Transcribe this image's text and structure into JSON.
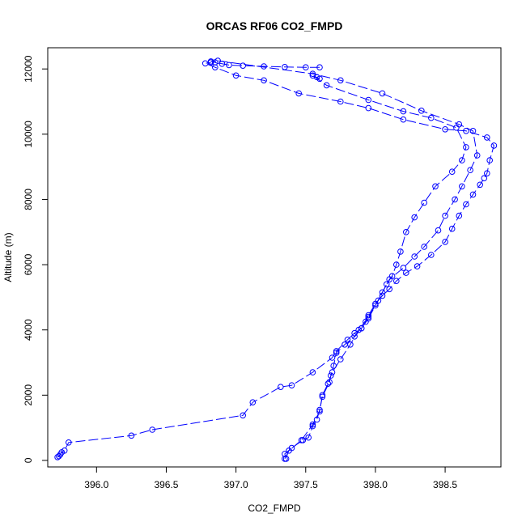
{
  "chart_data": {
    "type": "line",
    "title": "ORCAS RF06 CO2_FMPD",
    "xlabel": "CO2_FMPD",
    "ylabel": "Altitude (m)",
    "xlim": [
      395.65,
      398.9
    ],
    "ylim": [
      -200,
      12650
    ],
    "xticks": [
      396.0,
      396.5,
      397.0,
      397.5,
      398.0,
      398.5
    ],
    "xtick_labels": [
      "396.0",
      "396.5",
      "397.0",
      "397.5",
      "398.0",
      "398.5"
    ],
    "yticks": [
      0,
      2000,
      4000,
      6000,
      8000,
      10000,
      12000
    ],
    "ytick_labels": [
      "0",
      "2000",
      "4000",
      "6000",
      "8000",
      "10000",
      "12000"
    ],
    "grid": false,
    "legend": "none",
    "marker": "open-circle",
    "line_style": "dashed",
    "color": "#0000ff",
    "series": [
      {
        "values": [
          [
            395.72,
            100
          ],
          [
            395.73,
            130
          ],
          [
            395.74,
            180
          ],
          [
            395.75,
            250
          ],
          [
            395.77,
            300
          ],
          [
            395.8,
            550
          ],
          [
            396.25,
            760
          ],
          [
            396.4,
            940
          ],
          [
            397.05,
            1380
          ],
          [
            397.12,
            1780
          ],
          [
            397.32,
            2250
          ],
          [
            397.4,
            2300
          ],
          [
            397.55,
            2700
          ],
          [
            397.69,
            3150
          ],
          [
            397.72,
            3350
          ],
          [
            397.8,
            3700
          ],
          [
            397.85,
            3900
          ],
          [
            397.9,
            4050
          ],
          [
            397.93,
            4250
          ],
          [
            397.95,
            4450
          ],
          [
            398.0,
            4800
          ],
          [
            398.05,
            5050
          ],
          [
            398.1,
            5250
          ],
          [
            398.15,
            5500
          ],
          [
            398.22,
            5750
          ],
          [
            398.3,
            5950
          ],
          [
            398.4,
            6300
          ],
          [
            398.5,
            6700
          ],
          [
            398.55,
            7100
          ],
          [
            398.6,
            7500
          ],
          [
            398.65,
            7850
          ],
          [
            398.7,
            8150
          ],
          [
            398.75,
            8450
          ],
          [
            398.78,
            8650
          ],
          [
            398.8,
            8800
          ],
          [
            398.82,
            9200
          ],
          [
            398.85,
            9650
          ],
          [
            398.8,
            9900
          ],
          [
            398.65,
            10100
          ],
          [
            398.5,
            10150
          ],
          [
            398.2,
            10450
          ],
          [
            397.95,
            10800
          ],
          [
            397.75,
            11000
          ],
          [
            397.45,
            11250
          ],
          [
            397.2,
            11650
          ],
          [
            397.0,
            11800
          ],
          [
            396.85,
            12050
          ],
          [
            396.78,
            12170
          ],
          [
            396.82,
            12200
          ]
        ]
      },
      {
        "values": [
          [
            397.6,
            12050
          ],
          [
            397.5,
            12050
          ],
          [
            397.35,
            12060
          ],
          [
            397.2,
            12080
          ],
          [
            397.05,
            12100
          ],
          [
            396.95,
            12120
          ],
          [
            396.9,
            12160
          ],
          [
            396.85,
            12200
          ],
          [
            396.82,
            12230
          ],
          [
            396.87,
            12250
          ],
          [
            397.55,
            11850
          ],
          [
            397.75,
            11650
          ],
          [
            398.05,
            11250
          ],
          [
            398.33,
            10720
          ],
          [
            398.6,
            10300
          ],
          [
            398.7,
            10100
          ],
          [
            398.73,
            9350
          ],
          [
            398.68,
            8900
          ],
          [
            398.62,
            8400
          ],
          [
            398.57,
            8000
          ],
          [
            398.5,
            7500
          ],
          [
            398.45,
            7050
          ],
          [
            398.35,
            6550
          ],
          [
            398.28,
            6250
          ],
          [
            398.2,
            5900
          ],
          [
            398.1,
            5550
          ],
          [
            398.05,
            5150
          ],
          [
            398.0,
            4750
          ],
          [
            397.95,
            4350
          ],
          [
            397.9,
            4050
          ],
          [
            397.85,
            3800
          ],
          [
            397.78,
            3550
          ],
          [
            397.72,
            3300
          ],
          [
            397.7,
            2900
          ],
          [
            397.68,
            2600
          ],
          [
            397.67,
            2400
          ],
          [
            397.62,
            1950
          ],
          [
            397.6,
            1550
          ],
          [
            397.58,
            1250
          ],
          [
            397.55,
            1050
          ],
          [
            397.52,
            700
          ],
          [
            397.48,
            620
          ],
          [
            397.4,
            380
          ],
          [
            397.35,
            200
          ],
          [
            397.36,
            50
          ]
        ]
      },
      {
        "values": [
          [
            397.35,
            50
          ],
          [
            397.38,
            300
          ],
          [
            397.47,
            620
          ],
          [
            397.55,
            1100
          ],
          [
            397.6,
            1500
          ],
          [
            397.62,
            2000
          ],
          [
            397.66,
            2350
          ],
          [
            397.69,
            2700
          ],
          [
            397.75,
            3100
          ],
          [
            397.82,
            3550
          ],
          [
            397.88,
            4000
          ],
          [
            397.95,
            4400
          ],
          [
            398.02,
            4900
          ],
          [
            398.08,
            5400
          ],
          [
            398.12,
            5650
          ],
          [
            398.15,
            6000
          ],
          [
            398.18,
            6400
          ],
          [
            398.22,
            7000
          ],
          [
            398.28,
            7450
          ],
          [
            398.35,
            7900
          ],
          [
            398.43,
            8400
          ],
          [
            398.55,
            8850
          ],
          [
            398.62,
            9200
          ],
          [
            398.65,
            9600
          ],
          [
            398.58,
            10200
          ],
          [
            398.4,
            10500
          ],
          [
            398.2,
            10700
          ],
          [
            397.95,
            11050
          ],
          [
            397.65,
            11500
          ],
          [
            397.55,
            11800
          ],
          [
            397.6,
            11700
          ],
          [
            397.58,
            11750
          ]
        ]
      }
    ]
  }
}
